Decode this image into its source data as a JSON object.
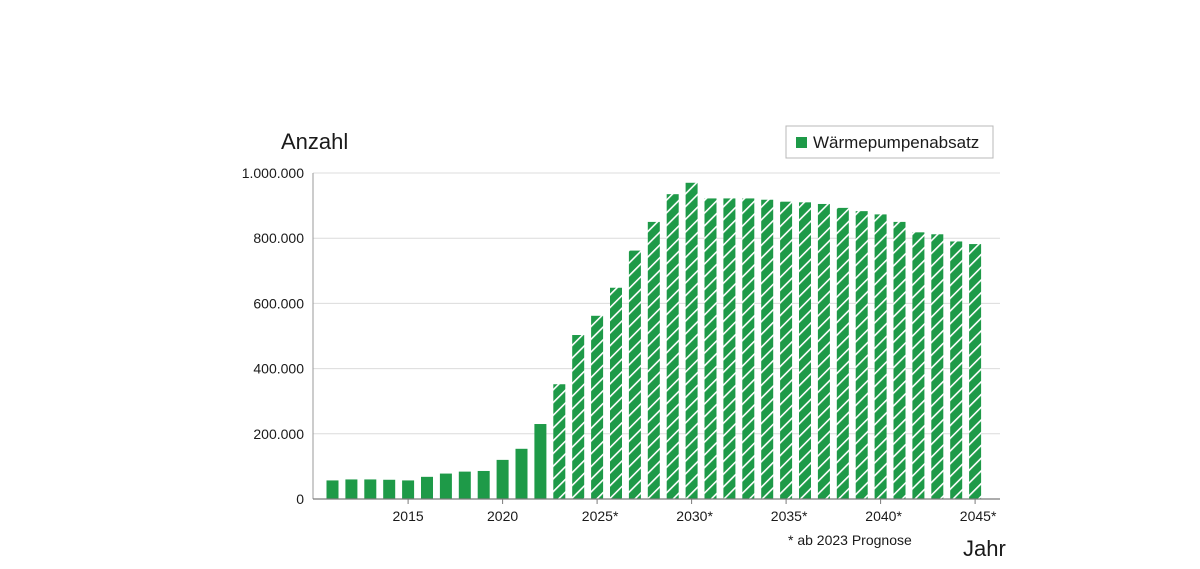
{
  "chart_data": {
    "type": "bar",
    "ylabel": "Anzahl",
    "xlabel": "Jahr",
    "legend": {
      "label": "Wärmepumpenabsatz",
      "position": "top-right"
    },
    "note": "* ab 2023 Prognose",
    "ylim": [
      0,
      1000000
    ],
    "yticks": [
      0,
      200000,
      400000,
      600000,
      800000,
      1000000
    ],
    "ytick_labels": [
      "0",
      "200.000",
      "400.000",
      "600.000",
      "800.000",
      "1.000.000"
    ],
    "xtick_years": [
      2015,
      2020,
      2025,
      2030,
      2035,
      2040,
      2045
    ],
    "xtick_labels": [
      "2015",
      "2020",
      "2025*",
      "2030*",
      "2035*",
      "2040*",
      "2045*"
    ],
    "forecast_from": 2023,
    "grid": "horizontal",
    "color": "#1e9a48",
    "hatch_color": "#ffffff",
    "years": [
      2011,
      2012,
      2013,
      2014,
      2015,
      2016,
      2017,
      2018,
      2019,
      2020,
      2021,
      2022,
      2023,
      2024,
      2025,
      2026,
      2027,
      2028,
      2029,
      2030,
      2031,
      2032,
      2033,
      2034,
      2035,
      2036,
      2037,
      2038,
      2039,
      2040,
      2041,
      2042,
      2043,
      2044,
      2045
    ],
    "values": [
      57000,
      60000,
      60000,
      59000,
      57000,
      68000,
      78000,
      84000,
      86000,
      120000,
      154000,
      230000,
      352000,
      503000,
      562000,
      648000,
      762000,
      850000,
      935000,
      970000,
      922000,
      922000,
      922000,
      918000,
      912000,
      910000,
      905000,
      893000,
      883000,
      873000,
      850000,
      818000,
      812000,
      790000,
      782000
    ]
  }
}
